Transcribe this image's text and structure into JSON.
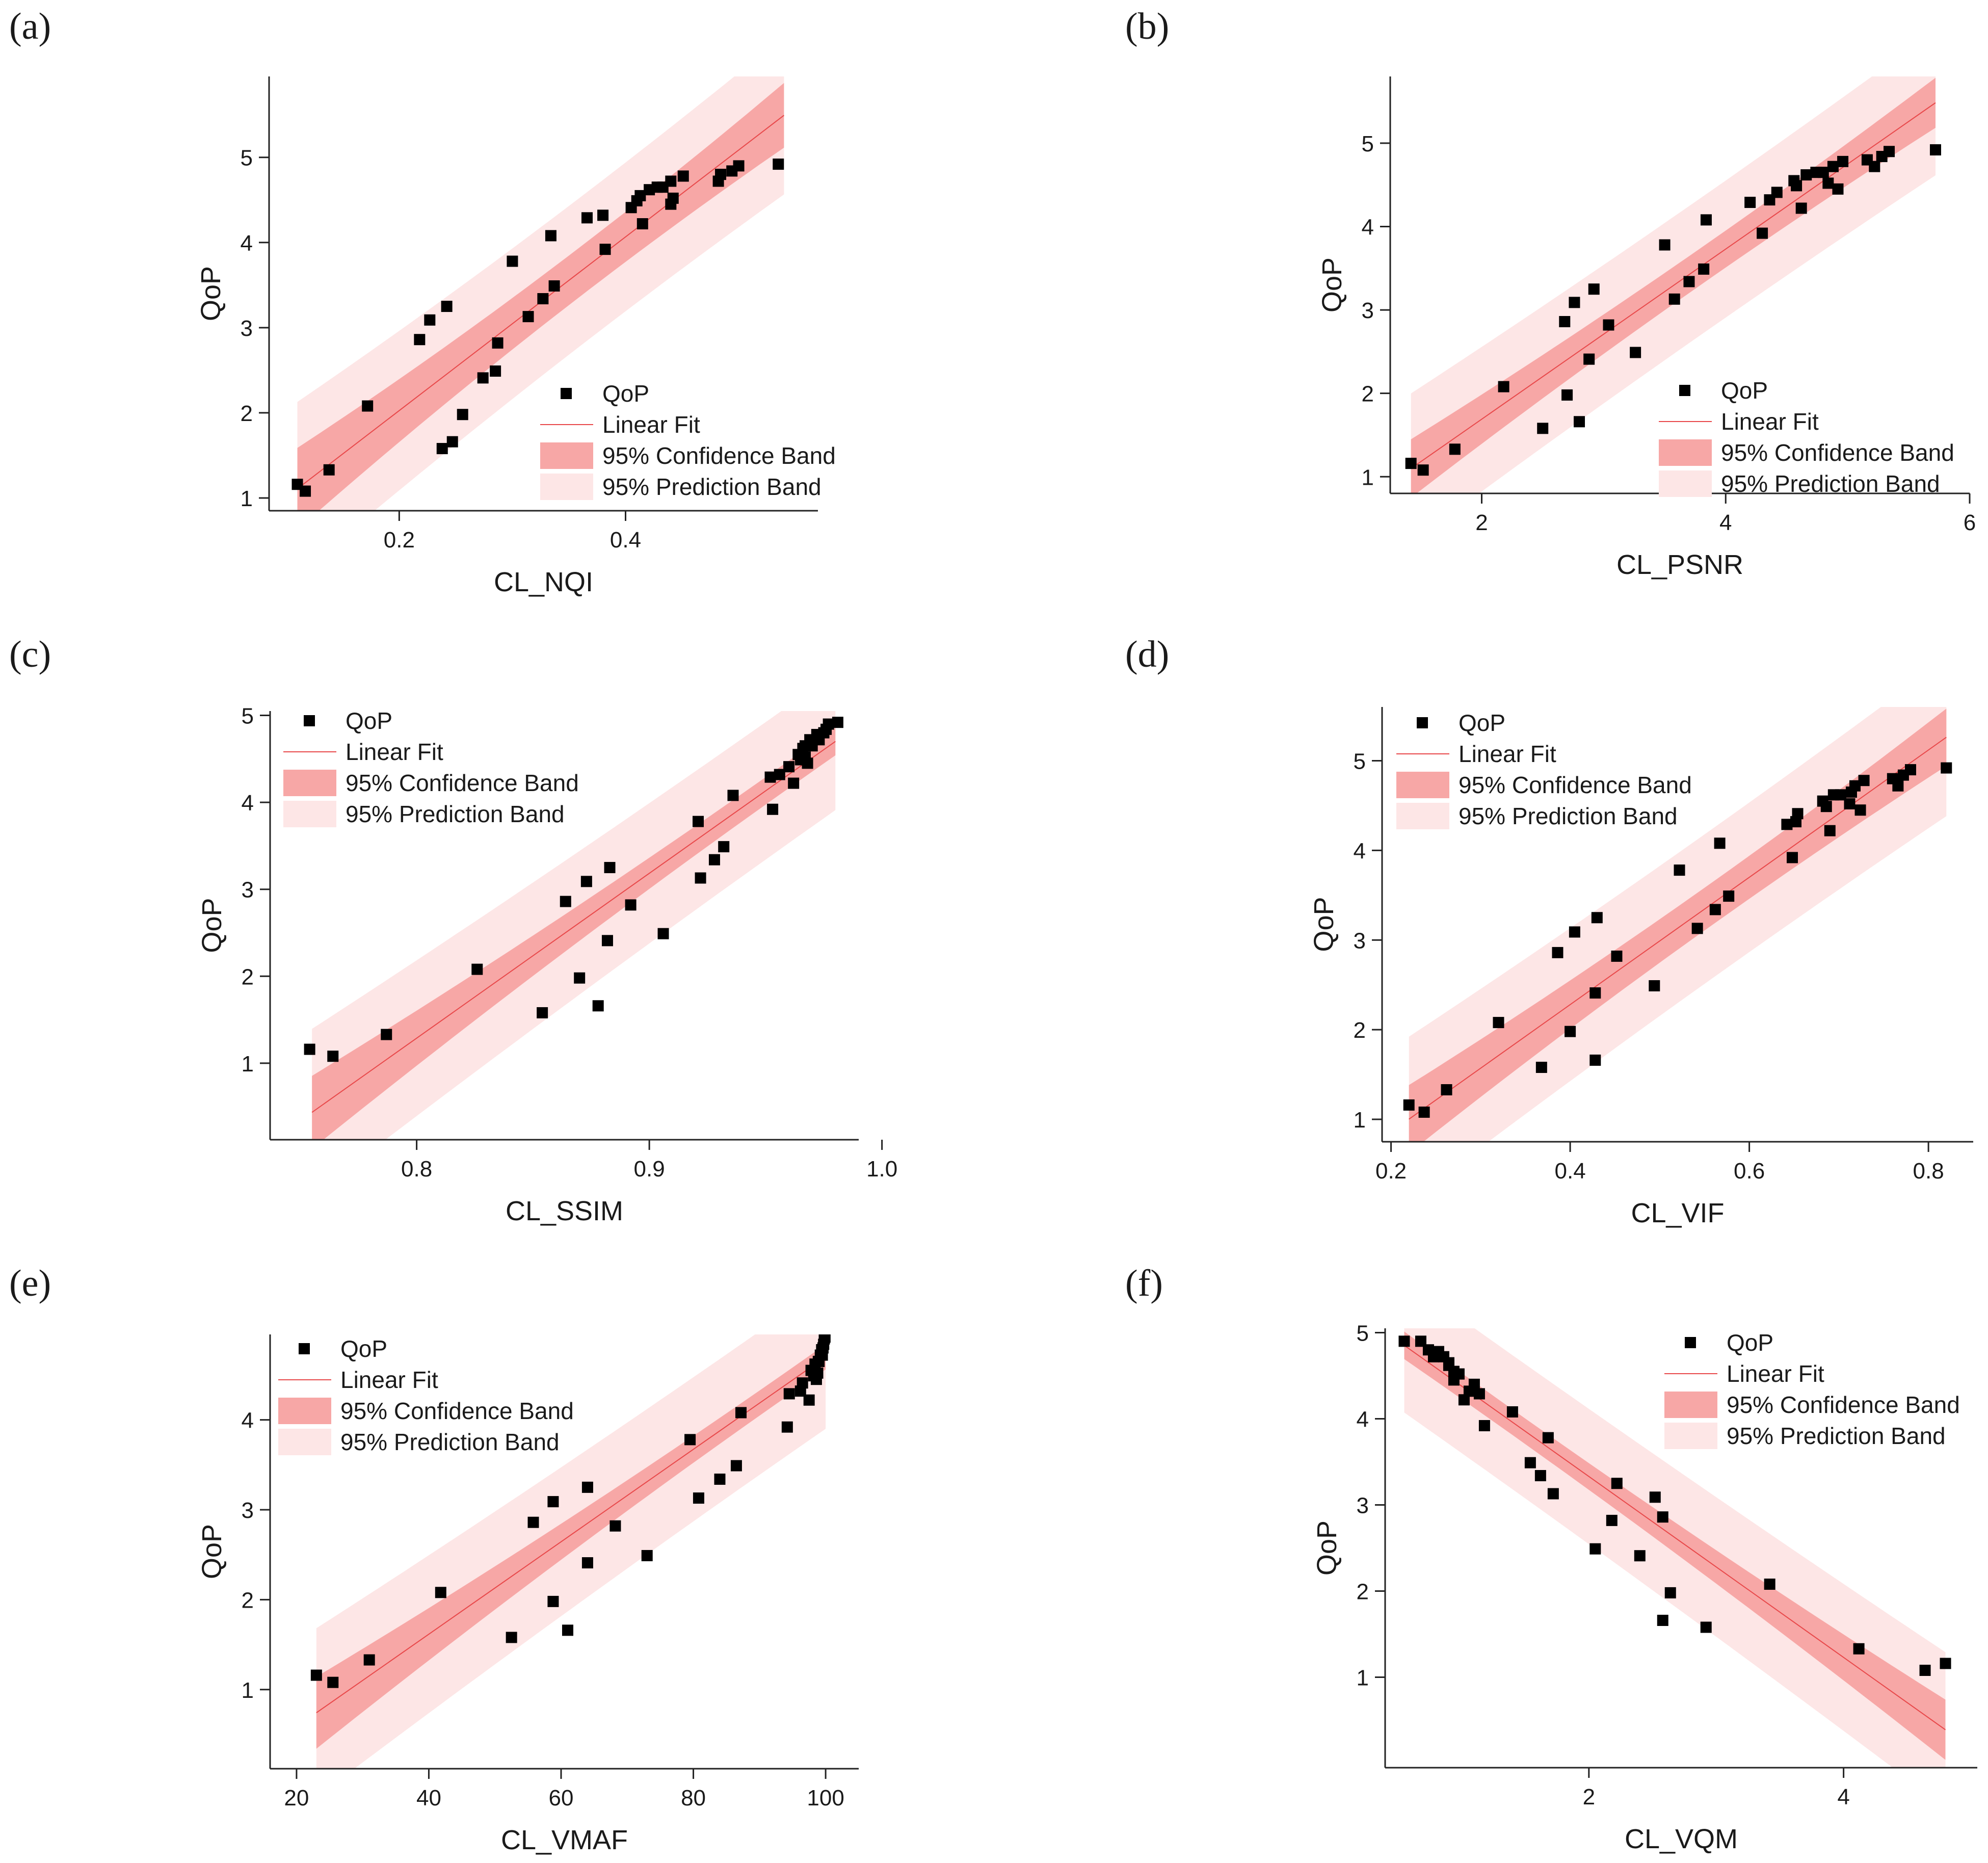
{
  "colors": {
    "prediction_band": "#fde6e6",
    "confidence_band": "#f7a7a6",
    "fit_line": "#e8484a",
    "point": "#000000",
    "axis": "#222222"
  },
  "legend_labels": {
    "points": "QoP",
    "fit": "Linear Fit",
    "confidence": "95% Confidence Band",
    "prediction": "95% Prediction Band"
  },
  "chart_data": [
    {
      "label": "(a)",
      "type": "scatter",
      "xlabel": "CL_NQI",
      "ylabel": "QoP",
      "xlim": [
        0.085,
        0.57
      ],
      "ylim": [
        0.85,
        5.95
      ],
      "xticks": [
        0.2,
        0.4
      ],
      "xtick_labels": [
        "0.2",
        "0.4"
      ],
      "yticks": [
        1,
        2,
        3,
        4,
        5
      ],
      "ytick_labels": [
        "1",
        "2",
        "3",
        "4",
        "5"
      ],
      "legend_position": "lower-right",
      "fit": {
        "x": [
          0.11,
          0.54
        ],
        "slope": 10.2,
        "intercept": -0.014,
        "ci": [
          0.48,
          0.16,
          0.38
        ],
        "pi": [
          1.02,
          0.78,
          0.93
        ]
      },
      "x": [
        0.11,
        0.117,
        0.138,
        0.172,
        0.218,
        0.227,
        0.242,
        0.238,
        0.247,
        0.256,
        0.274,
        0.285,
        0.287,
        0.3,
        0.314,
        0.327,
        0.334,
        0.337,
        0.366,
        0.382,
        0.38,
        0.405,
        0.41,
        0.413,
        0.415,
        0.421,
        0.433,
        0.428,
        0.44,
        0.44,
        0.442,
        0.451,
        0.482,
        0.484,
        0.494,
        0.5,
        0.535
      ],
      "y": [
        1.16,
        1.08,
        1.33,
        2.08,
        2.86,
        3.09,
        3.25,
        1.58,
        1.66,
        1.98,
        2.41,
        2.49,
        2.82,
        3.78,
        3.13,
        3.34,
        4.08,
        3.49,
        4.29,
        3.92,
        4.32,
        4.41,
        4.49,
        4.55,
        4.22,
        4.62,
        4.65,
        4.65,
        4.72,
        4.45,
        4.52,
        4.78,
        4.72,
        4.8,
        4.84,
        4.9,
        4.92
      ]
    },
    {
      "label": "(b)",
      "type": "scatter",
      "xlabel": "CL_PSNR",
      "ylabel": "QoP",
      "xlim": [
        1.25,
        6.0
      ],
      "ylim": [
        0.8,
        5.8
      ],
      "xticks": [
        2,
        4,
        6
      ],
      "xtick_labels": [
        "2",
        "4",
        "6"
      ],
      "yticks": [
        1,
        2,
        3,
        4,
        5
      ],
      "ytick_labels": [
        "1",
        "2",
        "3",
        "4",
        "5"
      ],
      "legend_position": "lower-right",
      "fit": {
        "x": [
          1.42,
          5.72
        ],
        "slope": 1.02,
        "intercept": -0.35,
        "ci": [
          0.35,
          0.12,
          0.3
        ],
        "pi": [
          0.9,
          0.76,
          0.87
        ]
      },
      "x": [
        1.42,
        1.52,
        1.78,
        2.18,
        2.5,
        2.68,
        2.7,
        2.76,
        2.8,
        2.88,
        2.92,
        3.04,
        3.26,
        3.5,
        3.58,
        3.7,
        3.82,
        3.84,
        4.2,
        4.3,
        4.36,
        4.42,
        4.56,
        4.58,
        4.62,
        4.66,
        4.74,
        4.8,
        4.84,
        4.88,
        4.92,
        4.96,
        5.16,
        5.22,
        5.28,
        5.34,
        5.72
      ],
      "y": [
        1.16,
        1.08,
        1.33,
        2.08,
        1.58,
        2.86,
        1.98,
        3.09,
        1.66,
        2.41,
        3.25,
        2.82,
        2.49,
        3.78,
        3.13,
        3.34,
        3.49,
        4.08,
        4.29,
        3.92,
        4.32,
        4.41,
        4.55,
        4.49,
        4.22,
        4.62,
        4.65,
        4.65,
        4.52,
        4.72,
        4.45,
        4.78,
        4.8,
        4.72,
        4.84,
        4.9,
        4.92
      ]
    },
    {
      "label": "(c)",
      "type": "scatter",
      "xlabel": "CL_SSIM",
      "ylabel": "QoP",
      "xlim": [
        0.737,
        0.99
      ],
      "ylim": [
        0.12,
        5.05
      ],
      "xticks": [
        0.8,
        0.9,
        1.0
      ],
      "xtick_labels": [
        "0.8",
        "0.9",
        "1.0"
      ],
      "yticks": [
        1,
        2,
        3,
        4,
        5
      ],
      "ytick_labels": [
        "1",
        "2",
        "3",
        "4",
        "5"
      ],
      "legend_position": "top-left",
      "fit": {
        "x": [
          0.755,
          0.98
        ],
        "slope": 18.96,
        "intercept": -13.88,
        "ci": [
          0.42,
          0.13,
          0.16
        ],
        "pi": [
          0.96,
          0.78,
          0.79
        ]
      },
      "x": [
        0.754,
        0.764,
        0.787,
        0.826,
        0.854,
        0.864,
        0.87,
        0.873,
        0.878,
        0.882,
        0.883,
        0.892,
        0.906,
        0.921,
        0.922,
        0.928,
        0.932,
        0.936,
        0.952,
        0.953,
        0.956,
        0.96,
        0.962,
        0.964,
        0.965,
        0.966,
        0.967,
        0.967,
        0.968,
        0.969,
        0.97,
        0.972,
        0.973,
        0.975,
        0.976,
        0.977,
        0.981
      ],
      "y": [
        1.16,
        1.08,
        1.33,
        2.08,
        1.58,
        2.86,
        1.98,
        3.09,
        1.66,
        2.41,
        3.25,
        2.82,
        2.49,
        3.78,
        3.13,
        3.34,
        3.49,
        4.08,
        4.29,
        3.92,
        4.32,
        4.41,
        4.22,
        4.55,
        4.49,
        4.62,
        4.52,
        4.65,
        4.45,
        4.72,
        4.65,
        4.78,
        4.72,
        4.8,
        4.84,
        4.9,
        4.92
      ]
    },
    {
      "label": "(d)",
      "type": "scatter",
      "xlabel": "CL_VIF",
      "ylabel": "QoP",
      "xlim": [
        0.19,
        0.85
      ],
      "ylim": [
        0.75,
        5.6
      ],
      "xticks": [
        0.2,
        0.4,
        0.6,
        0.8
      ],
      "xtick_labels": [
        "0.2",
        "0.4",
        "0.6",
        "0.8"
      ],
      "yticks": [
        1,
        2,
        3,
        4,
        5
      ],
      "ytick_labels": [
        "1",
        "2",
        "3",
        "4",
        "5"
      ],
      "legend_position": "top-left",
      "fit": {
        "x": [
          0.22,
          0.82
        ],
        "slope": 7.1,
        "intercept": -0.56,
        "ci": [
          0.38,
          0.13,
          0.32
        ],
        "pi": [
          0.92,
          0.77,
          0.88
        ]
      },
      "x": [
        0.22,
        0.237,
        0.262,
        0.32,
        0.368,
        0.386,
        0.4,
        0.405,
        0.428,
        0.428,
        0.43,
        0.452,
        0.494,
        0.522,
        0.542,
        0.562,
        0.567,
        0.577,
        0.642,
        0.648,
        0.652,
        0.654,
        0.682,
        0.686,
        0.69,
        0.694,
        0.702,
        0.712,
        0.714,
        0.718,
        0.724,
        0.728,
        0.76,
        0.766,
        0.772,
        0.78,
        0.82
      ],
      "y": [
        1.16,
        1.08,
        1.33,
        2.08,
        1.58,
        2.86,
        1.98,
        3.09,
        2.41,
        1.66,
        3.25,
        2.82,
        2.49,
        3.78,
        3.13,
        3.34,
        4.08,
        3.49,
        4.29,
        3.92,
        4.32,
        4.41,
        4.55,
        4.49,
        4.22,
        4.62,
        4.62,
        4.52,
        4.65,
        4.72,
        4.45,
        4.78,
        4.8,
        4.72,
        4.84,
        4.9,
        4.92
      ]
    },
    {
      "label": "(e)",
      "type": "scatter",
      "xlabel": "CL_VMAF",
      "ylabel": "QoP",
      "xlim": [
        16,
        105
      ],
      "ylim": [
        0.12,
        4.95
      ],
      "xticks": [
        20,
        40,
        60,
        80,
        100
      ],
      "xtick_labels": [
        "20",
        "40",
        "60",
        "80",
        "100"
      ],
      "yticks": [
        1,
        2,
        3,
        4
      ],
      "ytick_labels": [
        "1",
        "2",
        "3",
        "4"
      ],
      "legend_position": "top-left",
      "fit": {
        "x": [
          23,
          100
        ],
        "slope": 0.0514,
        "intercept": -0.44,
        "ci": [
          0.4,
          0.12,
          0.14
        ],
        "pi": [
          0.94,
          0.78,
          0.8
        ]
      },
      "x": [
        23,
        25.5,
        31,
        41.8,
        52.5,
        55.8,
        58.8,
        58.8,
        61,
        64,
        64,
        68.2,
        73,
        79.5,
        80.8,
        84,
        86.5,
        87.2,
        94.2,
        94.5,
        96.2,
        96.5,
        97.5,
        97.8,
        98.2,
        98.4,
        98.6,
        98.8,
        98.9,
        99,
        99.2,
        99.4,
        99.5,
        99.6,
        99.7,
        99.8,
        99.9
      ],
      "y": [
        1.16,
        1.08,
        1.33,
        2.08,
        1.58,
        2.86,
        1.98,
        3.09,
        1.66,
        2.41,
        3.25,
        2.82,
        2.49,
        3.78,
        3.13,
        3.34,
        3.49,
        4.08,
        3.92,
        4.29,
        4.32,
        4.41,
        4.22,
        4.55,
        4.49,
        4.62,
        4.45,
        4.52,
        4.65,
        4.65,
        4.72,
        4.78,
        4.72,
        4.8,
        4.84,
        4.9,
        4.92
      ]
    },
    {
      "label": "(f)",
      "type": "scatter",
      "xlabel": "CL_VQM",
      "ylabel": "QoP",
      "xlim": [
        0.4,
        5.05
      ],
      "ylim": [
        -0.05,
        5.05
      ],
      "xticks": [
        2,
        4
      ],
      "xtick_labels": [
        "2",
        "4"
      ],
      "yticks": [
        1,
        2,
        3,
        4,
        5
      ],
      "ytick_labels": [
        "1",
        "2",
        "3",
        "4",
        "5"
      ],
      "legend_position": "top-right",
      "fit": {
        "x": [
          0.55,
          4.8
        ],
        "slope": -1.05,
        "intercept": 5.43,
        "ci": [
          0.16,
          0.1,
          0.35
        ],
        "pi": [
          0.78,
          0.76,
          0.9
        ]
      },
      "x": [
        0.55,
        0.68,
        0.74,
        0.78,
        0.82,
        0.86,
        0.9,
        0.9,
        0.94,
        0.94,
        0.98,
        1.02,
        1.06,
        1.1,
        1.14,
        1.18,
        1.4,
        1.54,
        1.62,
        1.68,
        1.72,
        2.05,
        2.18,
        2.22,
        2.4,
        2.52,
        2.58,
        2.58,
        2.64,
        2.92,
        3.42,
        4.12,
        4.64,
        4.8
      ],
      "y": [
        4.9,
        4.9,
        4.8,
        4.72,
        4.78,
        4.72,
        4.65,
        4.62,
        4.55,
        4.45,
        4.52,
        4.22,
        4.32,
        4.4,
        4.29,
        3.92,
        4.08,
        3.49,
        3.34,
        3.78,
        3.13,
        2.49,
        2.82,
        3.25,
        2.41,
        3.09,
        2.86,
        1.66,
        1.98,
        1.58,
        2.08,
        1.33,
        1.08,
        1.16
      ]
    }
  ]
}
